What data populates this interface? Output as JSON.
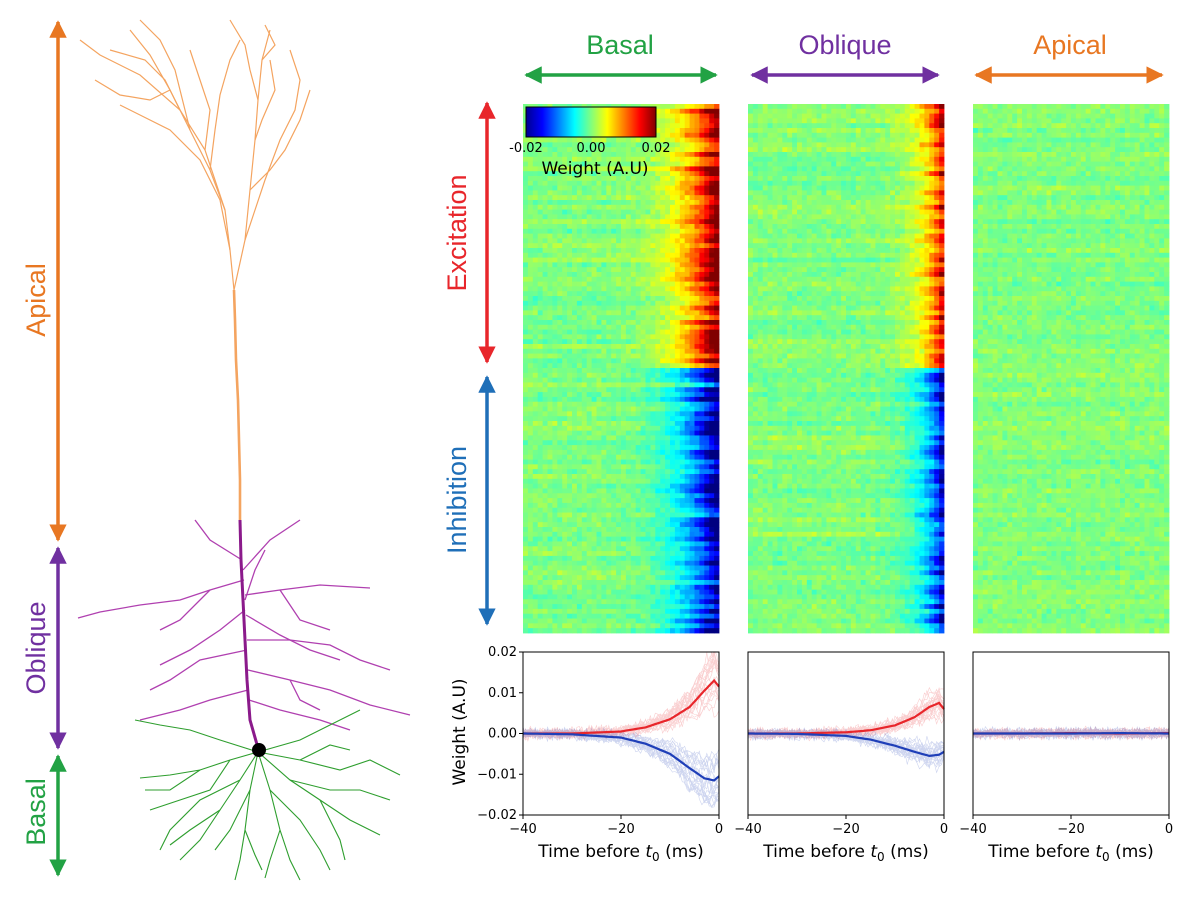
{
  "neuron": {
    "regions": [
      {
        "key": "apical",
        "label": "Apical",
        "color": "#E87722"
      },
      {
        "key": "oblique",
        "label": "Oblique",
        "color": "#7030A0"
      },
      {
        "key": "basal",
        "label": "Basal",
        "color": "#22A244"
      }
    ],
    "dendrite_colors": {
      "apical": "#F4A460",
      "oblique": "#B040B0",
      "basal": "#2E9E2E",
      "trunk": "#8B1A8B",
      "soma": "#000000"
    }
  },
  "columns": [
    {
      "key": "basal",
      "label": "Basal",
      "color": "#22A244"
    },
    {
      "key": "oblique",
      "label": "Oblique",
      "color": "#7030A0"
    },
    {
      "key": "apical",
      "label": "Apical",
      "color": "#E87722"
    }
  ],
  "rows": {
    "excitation": {
      "label": "Excitation",
      "color": "#E8262B"
    },
    "inhibition": {
      "label": "Inhibition",
      "color": "#1F6FB8"
    }
  },
  "colorbar": {
    "label": "Weight (A.U)",
    "ticks": [
      "-0.02",
      "0.00",
      "0.02"
    ],
    "range": [
      -0.02,
      0.02
    ]
  },
  "chart_data": {
    "type": "line",
    "ylabel": "Weight (A.U)",
    "xlabel_prefix": "Time before ",
    "xlabel_var": "t",
    "xlabel_sub": "0",
    "xlabel_suffix": " (ms)",
    "xlim": [
      -40,
      0
    ],
    "ylim": [
      -0.02,
      0.02
    ],
    "xticks": [
      "−40",
      "−20",
      "0"
    ],
    "yticks": [
      "0.02",
      "0.01",
      "0.00",
      "−0.01",
      "−0.02"
    ],
    "panels": [
      {
        "name": "Basal",
        "series": [
          {
            "name": "Excitation",
            "color": "#E8262B",
            "x": [
              -40,
              -30,
              -20,
              -15,
              -10,
              -6,
              -3,
              -1,
              0
            ],
            "y": [
              0.0,
              0.0,
              0.0005,
              0.0015,
              0.0035,
              0.0065,
              0.0105,
              0.013,
              0.0115
            ]
          },
          {
            "name": "Inhibition",
            "color": "#1F3FB8",
            "x": [
              -40,
              -30,
              -20,
              -15,
              -10,
              -6,
              -3,
              -1,
              0
            ],
            "y": [
              0.0,
              -0.0002,
              -0.001,
              -0.0025,
              -0.005,
              -0.0085,
              -0.011,
              -0.0115,
              -0.0105
            ]
          }
        ]
      },
      {
        "name": "Oblique",
        "series": [
          {
            "name": "Excitation",
            "color": "#E8262B",
            "x": [
              -40,
              -30,
              -20,
              -15,
              -10,
              -6,
              -3,
              -1,
              0
            ],
            "y": [
              0.0,
              0.0,
              0.0003,
              0.0008,
              0.002,
              0.004,
              0.0065,
              0.0075,
              0.006
            ]
          },
          {
            "name": "Inhibition",
            "color": "#1F3FB8",
            "x": [
              -40,
              -30,
              -20,
              -15,
              -10,
              -6,
              -3,
              -1,
              0
            ],
            "y": [
              0.0,
              -0.0001,
              -0.0006,
              -0.0015,
              -0.003,
              -0.0045,
              -0.0055,
              -0.0052,
              -0.0045
            ]
          }
        ]
      },
      {
        "name": "Apical",
        "series": [
          {
            "name": "Excitation",
            "color": "#E8262B",
            "x": [
              -40,
              -30,
              -20,
              -10,
              0
            ],
            "y": [
              0.0,
              0.0,
              0.0001,
              0.0,
              0.0001
            ]
          },
          {
            "name": "Inhibition",
            "color": "#1F3FB8",
            "x": [
              -40,
              -30,
              -20,
              -10,
              0
            ],
            "y": [
              0.0,
              0.0,
              0.0,
              0.0001,
              0.0
            ]
          }
        ]
      }
    ]
  }
}
